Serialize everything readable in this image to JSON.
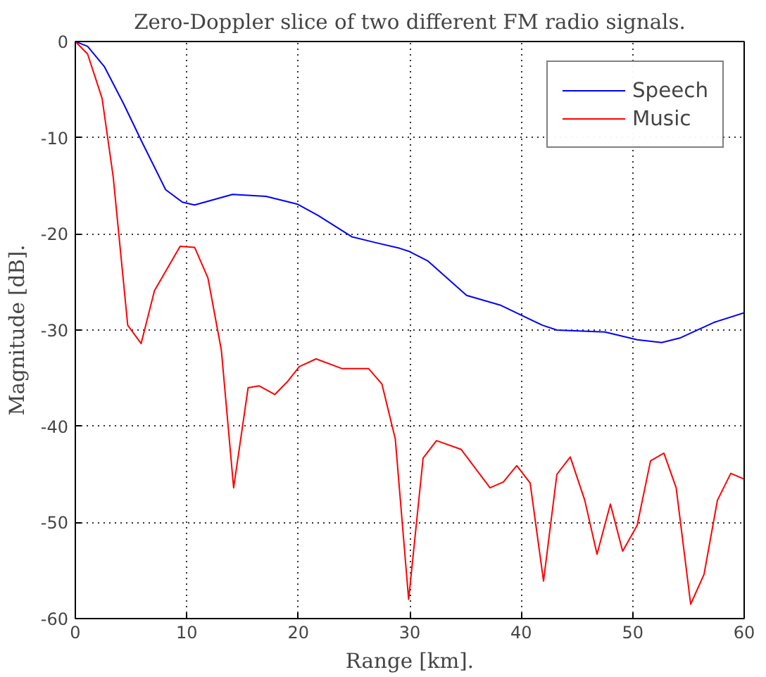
{
  "chart_data": {
    "type": "line",
    "title": "Zero-Doppler slice of two different FM radio signals.",
    "xlabel": "Range [km].",
    "ylabel": "Magnitude [dB].",
    "xlim": [
      0,
      60
    ],
    "ylim": [
      -60,
      0
    ],
    "xticks": [
      0,
      10,
      20,
      30,
      40,
      50,
      60
    ],
    "yticks": [
      -60,
      -50,
      -40,
      -30,
      -20,
      -10,
      0
    ],
    "grid": true,
    "legend": "top right",
    "line_style": "solid",
    "marker": "none",
    "series": [
      {
        "name": "Speech",
        "color": "#0000ff",
        "x": [
          0,
          1.1,
          2.6,
          4.3,
          6,
          8.1,
          9.6,
          10.7,
          14.1,
          17.1,
          19.9,
          21.8,
          24.8,
          26.9,
          29.1,
          29.9,
          31.6,
          35.1,
          38.1,
          41.9,
          43.2,
          47.5,
          50.4,
          52.6,
          54.3,
          57.3,
          60
        ],
        "values": [
          0,
          -0.5,
          -2.6,
          -6.4,
          -10.5,
          -15.4,
          -16.7,
          -17,
          -15.9,
          -16.1,
          -16.9,
          -18.1,
          -20.3,
          -20.9,
          -21.5,
          -21.8,
          -22.8,
          -26.4,
          -27.4,
          -29.5,
          -30,
          -30.2,
          -31,
          -31.3,
          -30.8,
          -29.2,
          -28.2
        ]
      },
      {
        "name": "Music",
        "color": "#ff0000",
        "x": [
          0,
          1.1,
          2.4,
          3.4,
          4.7,
          5.9,
          7.1,
          9.4,
          10.7,
          11.9,
          13.1,
          14.2,
          15.5,
          16.5,
          17.9,
          19,
          20.1,
          21.6,
          23.9,
          26.3,
          27.5,
          28.7,
          29.9,
          31.2,
          32.4,
          34.6,
          37.2,
          38.4,
          39.6,
          40.8,
          42,
          43.2,
          44.4,
          45.7,
          46.8,
          48,
          49.1,
          50.4,
          51.6,
          52.8,
          53.9,
          55.2,
          56.4,
          57.6,
          58.8,
          60
        ],
        "values": [
          0,
          -1.3,
          -5.9,
          -14.1,
          -29.5,
          -31.4,
          -25.9,
          -21.3,
          -21.4,
          -24.6,
          -32.1,
          -46.4,
          -36,
          -35.8,
          -36.7,
          -35.4,
          -33.8,
          -33,
          -34,
          -34,
          -35.6,
          -41.3,
          -58,
          -43.3,
          -41.5,
          -42.4,
          -46.4,
          -45.8,
          -44.1,
          -45.9,
          -56.1,
          -45,
          -43.2,
          -47.7,
          -53.3,
          -48.1,
          -53,
          -50.3,
          -43.6,
          -42.8,
          -46.4,
          -58.5,
          -55.4,
          -47.7,
          -44.9,
          -45.5
        ]
      }
    ]
  }
}
